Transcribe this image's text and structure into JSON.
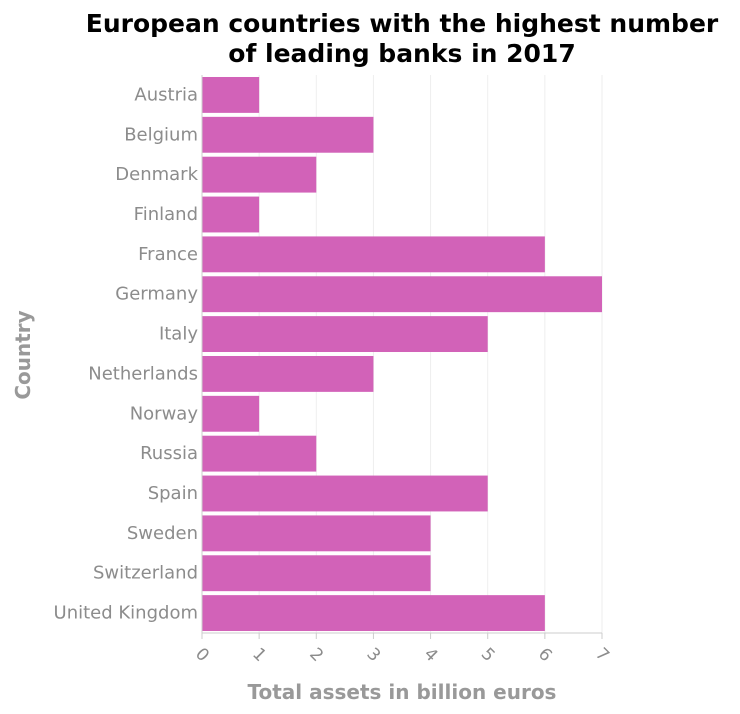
{
  "chart_data": {
    "type": "bar",
    "orientation": "horizontal",
    "title": "European countries with the highest number of leading banks in 2017",
    "title_lines": [
      "European countries with the highest number",
      "of leading banks in 2017"
    ],
    "xlabel": "Total assets in billion euros",
    "ylabel": "Country",
    "categories": [
      "Austria",
      "Belgium",
      "Denmark",
      "Finland",
      "France",
      "Germany",
      "Italy",
      "Netherlands",
      "Norway",
      "Russia",
      "Spain",
      "Sweden",
      "Switzerland",
      "United Kingdom"
    ],
    "values": [
      1,
      3,
      2,
      1,
      6,
      7,
      5,
      3,
      1,
      2,
      5,
      4,
      4,
      6
    ],
    "xlim": [
      0,
      7
    ],
    "xticks": [
      0,
      1,
      2,
      3,
      4,
      5,
      6,
      7
    ],
    "grid": "vertical",
    "legend": "none",
    "bar_color": "#d262b8"
  }
}
